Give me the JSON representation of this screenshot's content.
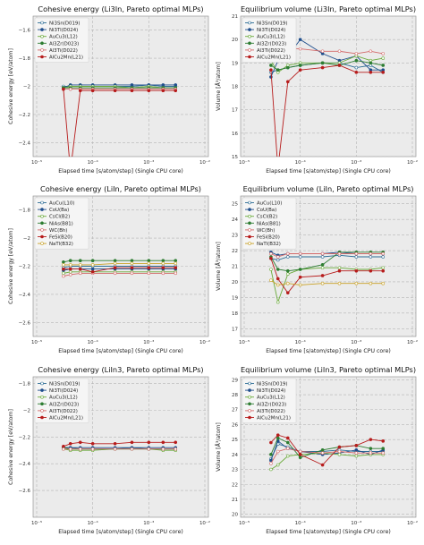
{
  "figure": {
    "xlabel": "Elapsed time [s/atom/step] (Single CPU core)",
    "xticks": [
      "10⁻⁵",
      "10⁻⁴",
      "10⁻³",
      "10⁻²"
    ]
  },
  "chart_data": [
    {
      "type": "line",
      "title": "Cohesive energy (Li3In, Pareto optimal MLPs)",
      "xlabel": "Elapsed time [s/atom/step] (Single CPU core)",
      "ylabel": "Cohesive energy [eV/atom]",
      "xscale": "log",
      "xlim": [
        1e-05,
        0.01
      ],
      "ylim": [
        -2.5,
        -1.5
      ],
      "yticks": [
        -2.4,
        -2.2,
        -2.0,
        -1.8,
        -1.6
      ],
      "grid": true,
      "legend": "top-left",
      "x": [
        3e-05,
        4e-05,
        6e-05,
        0.0001,
        0.00025,
        0.0005,
        0.001,
        0.0018,
        0.003
      ],
      "series": [
        {
          "name": "Ni3Sn(D019)",
          "color": "#2d6e96",
          "marker": "open",
          "values": [
            -2.0,
            -2.0,
            -2.0,
            -2.0,
            -2.0,
            -2.0,
            -1.99,
            -2.0,
            -2.0
          ]
        },
        {
          "name": "Ni3Ti(D024)",
          "color": "#1f4e8c",
          "marker": "filled",
          "values": [
            -2.01,
            -1.99,
            -1.99,
            -1.99,
            -1.99,
            -1.99,
            -1.99,
            -1.99,
            -1.99
          ]
        },
        {
          "name": "AuCu3(L12)",
          "color": "#6aaa3a",
          "marker": "open",
          "values": [
            -2.01,
            -2.0,
            -2.0,
            -2.0,
            -2.0,
            -2.01,
            -2.0,
            -2.01,
            -2.01
          ]
        },
        {
          "name": "Al3Zr(D023)",
          "color": "#2e7d32",
          "marker": "filled",
          "values": [
            -2.01,
            -2.01,
            -2.01,
            -2.01,
            -2.01,
            -2.01,
            -2.01,
            -2.01,
            -2.01
          ]
        },
        {
          "name": "Al3Ti(D022)",
          "color": "#d36a6a",
          "marker": "open",
          "values": [
            -2.02,
            -2.02,
            -2.02,
            -2.02,
            -2.02,
            -2.02,
            -2.02,
            -2.02,
            -2.02
          ]
        },
        {
          "name": "AlCu2Mn(L21)",
          "color": "#b71c1c",
          "marker": "filled",
          "values": [
            -2.02,
            -2.6,
            -2.03,
            -2.03,
            -2.03,
            -2.03,
            -2.03,
            -2.03,
            -2.03
          ]
        }
      ]
    },
    {
      "type": "line",
      "title": "Equilibrium volume (Li3In, Pareto optimal MLPs)",
      "xlabel": "Elapsed time [s/atom/step] (Single CPU core)",
      "ylabel": "Volume [Å³/atom]",
      "xscale": "log",
      "xlim": [
        1e-05,
        0.01
      ],
      "ylim": [
        15,
        21
      ],
      "yticks": [
        15,
        16,
        17,
        18,
        19,
        20,
        21
      ],
      "grid": true,
      "legend": "top-left",
      "x": [
        3e-05,
        4e-05,
        6e-05,
        0.0001,
        0.00025,
        0.0005,
        0.001,
        0.0018,
        0.003
      ],
      "series": [
        {
          "name": "Ni3Sn(D019)",
          "color": "#2d6e96",
          "marker": "open",
          "values": [
            18.6,
            18.7,
            18.8,
            18.9,
            19.0,
            19.0,
            18.8,
            18.9,
            18.6
          ]
        },
        {
          "name": "Ni3Ti(D024)",
          "color": "#1f4e8c",
          "marker": "filled",
          "values": [
            18.4,
            19.1,
            19.3,
            20.0,
            19.4,
            19.1,
            19.3,
            18.7,
            18.7
          ]
        },
        {
          "name": "AuCu3(L12)",
          "color": "#6aaa3a",
          "marker": "open",
          "values": [
            19.1,
            18.6,
            18.9,
            19.0,
            19.0,
            19.0,
            19.3,
            19.1,
            19.2
          ]
        },
        {
          "name": "Al3Zr(D023)",
          "color": "#2e7d32",
          "marker": "filled",
          "values": [
            18.9,
            18.7,
            18.8,
            18.9,
            19.0,
            18.9,
            19.1,
            19.0,
            18.9
          ]
        },
        {
          "name": "Al3Ti(D022)",
          "color": "#d36a6a",
          "marker": "open",
          "values": [
            19.6,
            19.4,
            19.6,
            19.6,
            19.5,
            19.5,
            19.4,
            19.5,
            19.4
          ]
        },
        {
          "name": "AlCu2Mn(L21)",
          "color": "#b71c1c",
          "marker": "filled",
          "values": [
            18.7,
            14.5,
            18.2,
            18.7,
            18.8,
            18.9,
            18.6,
            18.6,
            18.6
          ]
        }
      ]
    },
    {
      "type": "line",
      "title": "Cohesive energy (LiIn, Pareto optimal MLPs)",
      "xlabel": "Elapsed time [s/atom/step] (Single CPU core)",
      "ylabel": "Cohesive energy [eV/atom]",
      "xscale": "log",
      "xlim": [
        1e-05,
        0.01
      ],
      "ylim": [
        -2.7,
        -1.7
      ],
      "yticks": [
        -2.6,
        -2.4,
        -2.2,
        -2.0,
        -1.8
      ],
      "grid": true,
      "legend": "top-left",
      "x": [
        3e-05,
        4e-05,
        6e-05,
        0.0001,
        0.00025,
        0.0005,
        0.001,
        0.0018,
        0.003
      ],
      "series": [
        {
          "name": "AuCu(L10)",
          "color": "#2d6e96",
          "marker": "open",
          "values": [
            -2.21,
            -2.2,
            -2.2,
            -2.2,
            -2.2,
            -2.2,
            -2.2,
            -2.2,
            -2.2
          ]
        },
        {
          "name": "CoU(Ba)",
          "color": "#1f4e8c",
          "marker": "filled",
          "values": [
            -2.23,
            -2.22,
            -2.22,
            -2.22,
            -2.22,
            -2.22,
            -2.22,
            -2.22,
            -2.22
          ]
        },
        {
          "name": "CsCl(B2)",
          "color": "#6aaa3a",
          "marker": "open",
          "values": [
            -2.25,
            -2.24,
            -2.24,
            -2.24,
            -2.24,
            -2.24,
            -2.24,
            -2.24,
            -2.24
          ]
        },
        {
          "name": "NiAs(B81)",
          "color": "#2e7d32",
          "marker": "filled",
          "values": [
            -2.17,
            -2.16,
            -2.16,
            -2.16,
            -2.16,
            -2.16,
            -2.16,
            -2.16,
            -2.16
          ]
        },
        {
          "name": "WC(Bh)",
          "color": "#d36a6a",
          "marker": "open",
          "values": [
            -2.27,
            -2.26,
            -2.25,
            -2.25,
            -2.25,
            -2.25,
            -2.25,
            -2.25,
            -2.25
          ]
        },
        {
          "name": "FeSi(B20)",
          "color": "#b71c1c",
          "marker": "filled",
          "values": [
            -2.22,
            -2.22,
            -2.22,
            -2.24,
            -2.21,
            -2.21,
            -2.21,
            -2.21,
            -2.21
          ]
        },
        {
          "name": "NaTl(B32)",
          "color": "#c9a227",
          "marker": "open",
          "values": [
            -2.19,
            -2.19,
            -2.19,
            -2.19,
            -2.18,
            -2.18,
            -2.18,
            -2.18,
            -2.18
          ]
        }
      ]
    },
    {
      "type": "line",
      "title": "Equilibrium volume (LiIn, Pareto optimal MLPs)",
      "xlabel": "Elapsed time [s/atom/step] (Single CPU core)",
      "ylabel": "Volume [Å³/atom]",
      "xscale": "log",
      "xlim": [
        1e-05,
        0.01
      ],
      "ylim": [
        16.5,
        25.5
      ],
      "yticks": [
        17,
        18,
        19,
        20,
        21,
        22,
        23,
        24,
        25
      ],
      "grid": true,
      "legend": "top-left",
      "x": [
        3e-05,
        4e-05,
        6e-05,
        0.0001,
        0.00025,
        0.0005,
        0.001,
        0.0018,
        0.003
      ],
      "series": [
        {
          "name": "AuCu(L10)",
          "color": "#2d6e96",
          "marker": "open",
          "values": [
            21.5,
            21.4,
            21.6,
            21.6,
            21.6,
            21.7,
            21.6,
            21.6,
            21.6
          ]
        },
        {
          "name": "CoU(Ba)",
          "color": "#1f4e8c",
          "marker": "filled",
          "values": [
            21.9,
            21.7,
            21.8,
            21.8,
            21.8,
            21.9,
            21.8,
            21.8,
            21.8
          ]
        },
        {
          "name": "CsCl(B2)",
          "color": "#6aaa3a",
          "marker": "open",
          "values": [
            20.8,
            18.7,
            20.5,
            20.8,
            20.9,
            20.9,
            20.8,
            20.8,
            20.9
          ]
        },
        {
          "name": "NiAs(B81)",
          "color": "#2e7d32",
          "marker": "filled",
          "values": [
            21.6,
            20.8,
            20.7,
            20.8,
            21.1,
            21.9,
            21.9,
            21.9,
            21.9
          ]
        },
        {
          "name": "WC(Bh)",
          "color": "#d36a6a",
          "marker": "open",
          "values": [
            21.8,
            21.6,
            21.8,
            21.8,
            21.8,
            21.8,
            21.8,
            21.8,
            21.8
          ]
        },
        {
          "name": "FeSi(B20)",
          "color": "#b71c1c",
          "marker": "filled",
          "values": [
            21.5,
            20.2,
            19.3,
            20.3,
            20.4,
            20.7,
            20.7,
            20.7,
            20.7
          ]
        },
        {
          "name": "NaTl(B32)",
          "color": "#c9a227",
          "marker": "open",
          "values": [
            20.1,
            19.8,
            19.9,
            19.8,
            19.9,
            19.9,
            19.9,
            19.9,
            19.9
          ]
        }
      ]
    },
    {
      "type": "line",
      "title": "Cohesive energy (LiIn3, Pareto optimal MLPs)",
      "xlabel": "Elapsed time [s/atom/step] (Single CPU core)",
      "ylabel": "Cohesive energy [eV/atom]",
      "xscale": "log",
      "xlim": [
        1e-05,
        0.01
      ],
      "ylim": [
        -2.8,
        -1.75
      ],
      "yticks": [
        -2.6,
        -2.4,
        -2.2,
        -2.0,
        -1.8
      ],
      "grid": true,
      "legend": "top-left",
      "x": [
        3e-05,
        4e-05,
        6e-05,
        0.0001,
        0.00025,
        0.0005,
        0.001,
        0.0018,
        0.003
      ],
      "series": [
        {
          "name": "Ni3Sn(D019)",
          "color": "#2d6e96",
          "marker": "open",
          "values": [
            -2.28,
            -2.28,
            -2.29,
            -2.29,
            -2.29,
            -2.28,
            -2.29,
            -2.29,
            -2.29
          ]
        },
        {
          "name": "Ni3Ti(D024)",
          "color": "#1f4e8c",
          "marker": "filled",
          "values": [
            -2.28,
            -2.28,
            -2.28,
            -2.28,
            -2.28,
            -2.28,
            -2.28,
            -2.28,
            -2.28
          ]
        },
        {
          "name": "AuCu3(L12)",
          "color": "#6aaa3a",
          "marker": "open",
          "values": [
            -2.29,
            -2.3,
            -2.3,
            -2.3,
            -2.29,
            -2.29,
            -2.29,
            -2.3,
            -2.3
          ]
        },
        {
          "name": "Al3Zr(D023)",
          "color": "#2e7d32",
          "marker": "filled",
          "values": [
            -2.28,
            -2.29,
            -2.29,
            -2.29,
            -2.29,
            -2.29,
            -2.29,
            -2.29,
            -2.29
          ]
        },
        {
          "name": "Al3Ti(D022)",
          "color": "#d36a6a",
          "marker": "open",
          "values": [
            -2.29,
            -2.29,
            -2.29,
            -2.29,
            -2.29,
            -2.29,
            -2.29,
            -2.29,
            -2.29
          ]
        },
        {
          "name": "AlCu2Mn(L21)",
          "color": "#b71c1c",
          "marker": "filled",
          "values": [
            -2.27,
            -2.25,
            -2.24,
            -2.25,
            -2.25,
            -2.24,
            -2.24,
            -2.24,
            -2.24
          ]
        }
      ]
    },
    {
      "type": "line",
      "title": "Equilibrium volume (LiIn3, Pareto optimal MLPs)",
      "xlabel": "Elapsed time [s/atom/step] (Single CPU core)",
      "ylabel": "Volume [Å³/atom]",
      "xscale": "log",
      "xlim": [
        1e-05,
        0.01
      ],
      "ylim": [
        19.8,
        29.2
      ],
      "yticks": [
        20,
        21,
        22,
        23,
        24,
        25,
        26,
        27,
        28,
        29
      ],
      "grid": true,
      "legend": "top-left",
      "x": [
        3e-05,
        4e-05,
        6e-05,
        0.0001,
        0.00025,
        0.0005,
        0.001,
        0.0018,
        0.003
      ],
      "series": [
        {
          "name": "Ni3Sn(D019)",
          "color": "#2d6e96",
          "marker": "open",
          "values": [
            23.7,
            24.7,
            24.5,
            24.2,
            24.2,
            24.3,
            24.2,
            24.2,
            24.2
          ]
        },
        {
          "name": "Ni3Ti(D024)",
          "color": "#1f4e8c",
          "marker": "filled",
          "values": [
            23.6,
            24.9,
            24.4,
            24.2,
            24.0,
            24.1,
            24.3,
            24.0,
            24.3
          ]
        },
        {
          "name": "AuCu3(L12)",
          "color": "#6aaa3a",
          "marker": "open",
          "values": [
            23.0,
            23.3,
            23.9,
            24.0,
            24.1,
            24.0,
            23.9,
            24.0,
            24.0
          ]
        },
        {
          "name": "Al3Zr(D023)",
          "color": "#2e7d32",
          "marker": "filled",
          "values": [
            24.0,
            25.1,
            24.8,
            23.8,
            24.3,
            24.5,
            24.6,
            24.4,
            24.4
          ]
        },
        {
          "name": "Al3Ti(D022)",
          "color": "#d36a6a",
          "marker": "open",
          "values": [
            23.4,
            24.2,
            24.4,
            24.2,
            24.1,
            24.2,
            24.1,
            24.1,
            24.1
          ]
        },
        {
          "name": "AlCu2Mn(L21)",
          "color": "#b71c1c",
          "marker": "filled",
          "values": [
            24.8,
            25.3,
            25.1,
            24.0,
            23.3,
            24.5,
            24.6,
            25.0,
            24.9
          ]
        }
      ]
    }
  ]
}
